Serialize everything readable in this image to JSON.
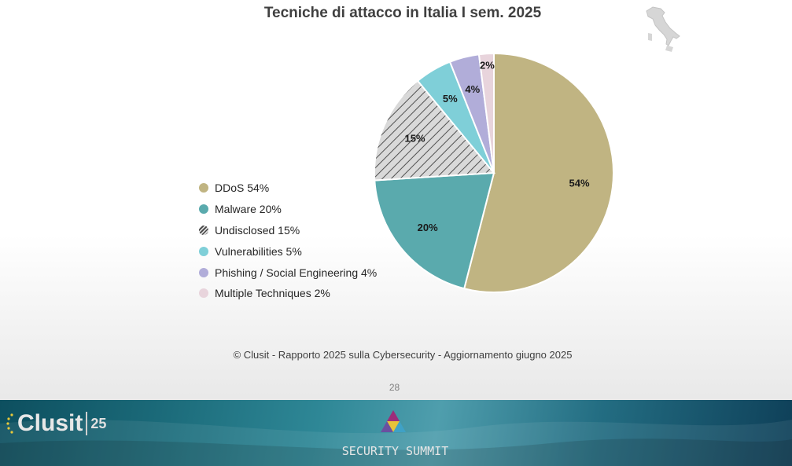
{
  "chart_data": {
    "type": "pie",
    "title": "Tecniche di attacco in Italia I sem. 2025",
    "slices": [
      {
        "name": "DDoS",
        "value": 54,
        "label": "54%",
        "legend": "DDoS 54%",
        "color": "#c0b482",
        "pattern": false
      },
      {
        "name": "Malware",
        "value": 20,
        "label": "20%",
        "legend": "Malware 20%",
        "color": "#5aaaad",
        "pattern": false
      },
      {
        "name": "Undisclosed",
        "value": 15,
        "label": "15%",
        "legend": "Undisclosed 15%",
        "color": "#d9d9d9",
        "pattern": true
      },
      {
        "name": "Vulnerabilities",
        "value": 5,
        "label": "5%",
        "legend": "Vulnerabilities 5%",
        "color": "#7fcfd8",
        "pattern": false
      },
      {
        "name": "Phishing / Social Engineering",
        "value": 4,
        "label": "4%",
        "legend": "Phishing / Social Engineering 4%",
        "color": "#b1add9",
        "pattern": false
      },
      {
        "name": "Multiple Techniques",
        "value": 2,
        "label": "2%",
        "legend": "Multiple Techniques 2%",
        "color": "#e8d4dc",
        "pattern": false
      }
    ],
    "legend_position": "left",
    "start": "top, clockwise"
  },
  "source": "© Clusit - Rapporto 2025 sulla Cybersecurity - Aggiornamento giugno 2025",
  "page_number": "28",
  "footer": {
    "clusit_word": "Clusit",
    "clusit_25": "25",
    "summit_text": "SECURITY SUMMIT"
  },
  "icons": [
    "italy-map-icon",
    "clusit-logo",
    "security-summit-logo"
  ]
}
